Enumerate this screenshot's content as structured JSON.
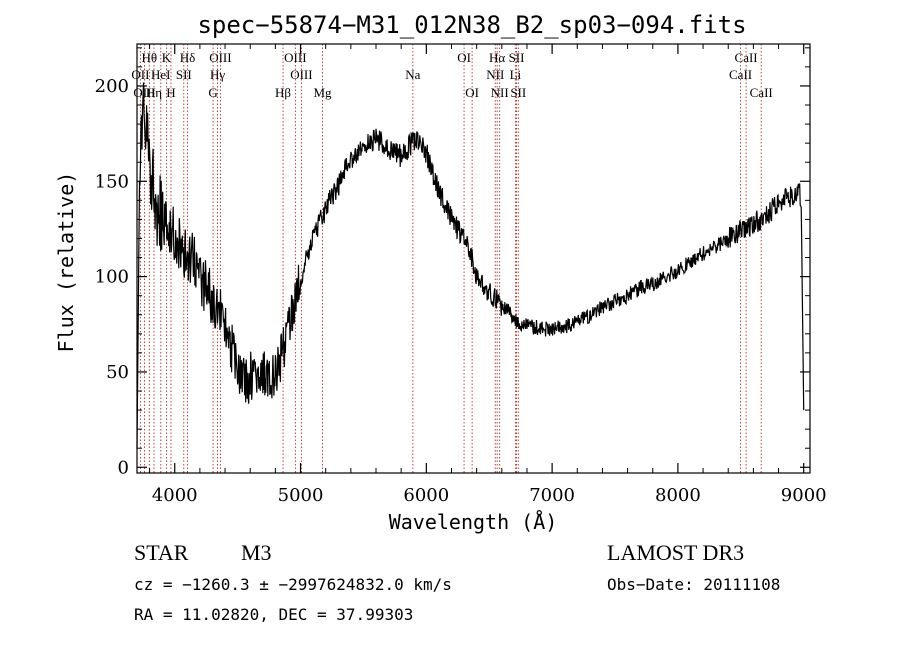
{
  "chart_data": {
    "type": "line",
    "title": "spec−55874−M31_012N38_B2_sp03−094.fits",
    "xlabel": "Wavelength (Å)",
    "ylabel": "Flux (relative)",
    "xlim": [
      3700,
      9050
    ],
    "ylim": [
      -3,
      222
    ],
    "xticks": [
      4000,
      5000,
      6000,
      7000,
      8000,
      9000
    ],
    "xticklabels": [
      "4000",
      "5000",
      "6000",
      "7000",
      "8000",
      "9000"
    ],
    "yticks": [
      0,
      50,
      100,
      150,
      200
    ],
    "yticklabels": [
      "0",
      "50",
      "100",
      "150",
      "200"
    ],
    "grid": false,
    "spectrum_anchors": {
      "x": [
        3700,
        3720,
        3750,
        3780,
        3800,
        3850,
        3900,
        3950,
        4000,
        4050,
        4100,
        4150,
        4200,
        4250,
        4300,
        4350,
        4400,
        4450,
        4500,
        4550,
        4600,
        4650,
        4700,
        4750,
        4800,
        4850,
        4900,
        4950,
        5000,
        5050,
        5100,
        5150,
        5200,
        5250,
        5300,
        5350,
        5400,
        5450,
        5500,
        5550,
        5600,
        5650,
        5700,
        5750,
        5800,
        5850,
        5900,
        5950,
        6000,
        6050,
        6100,
        6150,
        6200,
        6250,
        6300,
        6350,
        6400,
        6450,
        6500,
        6550,
        6600,
        6650,
        6700,
        6750,
        6800,
        6900,
        7000,
        7100,
        7200,
        7300,
        7400,
        7500,
        7600,
        7700,
        7800,
        7900,
        8000,
        8100,
        8200,
        8300,
        8400,
        8500,
        8600,
        8700,
        8800,
        8900,
        8960,
        8980,
        9000
      ],
      "y": [
        10,
        150,
        190,
        170,
        160,
        140,
        130,
        128,
        120,
        115,
        110,
        108,
        100,
        95,
        88,
        85,
        72,
        62,
        55,
        45,
        48,
        52,
        50,
        48,
        52,
        60,
        70,
        85,
        100,
        110,
        120,
        128,
        135,
        142,
        148,
        155,
        160,
        163,
        167,
        170,
        172,
        170,
        168,
        165,
        163,
        167,
        172,
        170,
        165,
        155,
        145,
        138,
        130,
        125,
        120,
        112,
        100,
        95,
        92,
        88,
        85,
        82,
        78,
        75,
        74,
        73,
        72,
        74,
        76,
        80,
        84,
        87,
        90,
        94,
        96,
        100,
        103,
        108,
        112,
        116,
        120,
        124,
        128,
        132,
        138,
        142,
        145,
        140,
        30
      ]
    },
    "spectral_lines": [
      {
        "label": "Hθ",
        "wavelength": 3798,
        "row": 0
      },
      {
        "label": "K",
        "wavelength": 3934,
        "row": 0
      },
      {
        "label": "Hδ",
        "wavelength": 4102,
        "row": 0
      },
      {
        "label": "OIII",
        "wavelength": 4363,
        "row": 0
      },
      {
        "label": "OIII",
        "wavelength": 4959,
        "row": 0
      },
      {
        "label": "OI",
        "wavelength": 6300,
        "row": 0
      },
      {
        "label": "Hα",
        "wavelength": 6563,
        "row": 0
      },
      {
        "label": "SII",
        "wavelength": 6717,
        "row": 0
      },
      {
        "label": "CaII",
        "wavelength": 8542,
        "row": 0
      },
      {
        "label": "OII",
        "wavelength": 3727,
        "row": 1
      },
      {
        "label": "HeI",
        "wavelength": 3889,
        "row": 1
      },
      {
        "label": "SII",
        "wavelength": 4072,
        "row": 1
      },
      {
        "label": "Hγ",
        "wavelength": 4340,
        "row": 1
      },
      {
        "label": "OIII",
        "wavelength": 5007,
        "row": 1
      },
      {
        "label": "Na",
        "wavelength": 5893,
        "row": 1
      },
      {
        "label": "NII",
        "wavelength": 6548,
        "row": 1
      },
      {
        "label": "Li",
        "wavelength": 6708,
        "row": 1
      },
      {
        "label": "CaII",
        "wavelength": 8498,
        "row": 1
      },
      {
        "label": "OIII",
        "wavelength": 3760,
        "row": 2
      },
      {
        "label": "Hη",
        "wavelength": 3835,
        "row": 2
      },
      {
        "label": "H",
        "wavelength": 3970,
        "row": 2
      },
      {
        "label": "G",
        "wavelength": 4305,
        "row": 2
      },
      {
        "label": "Hβ",
        "wavelength": 4861,
        "row": 2
      },
      {
        "label": "Mg",
        "wavelength": 5175,
        "row": 2
      },
      {
        "label": "OI",
        "wavelength": 6364,
        "row": 2
      },
      {
        "label": "NII",
        "wavelength": 6583,
        "row": 2
      },
      {
        "label": "SII",
        "wavelength": 6731,
        "row": 2
      },
      {
        "label": "CaII",
        "wavelength": 8662,
        "row": 2
      }
    ]
  },
  "info": {
    "object_class": "STAR",
    "subclass": "M3",
    "survey": "LAMOST DR3",
    "cz_line": "cz = −1260.3 ± −2997624832.0 km/s",
    "obs_date": "Obs−Date: 20111108",
    "coords": "RA =  11.02820, DEC =  37.99303"
  },
  "colors": {
    "line": "#000000",
    "marker": "#b03030"
  }
}
